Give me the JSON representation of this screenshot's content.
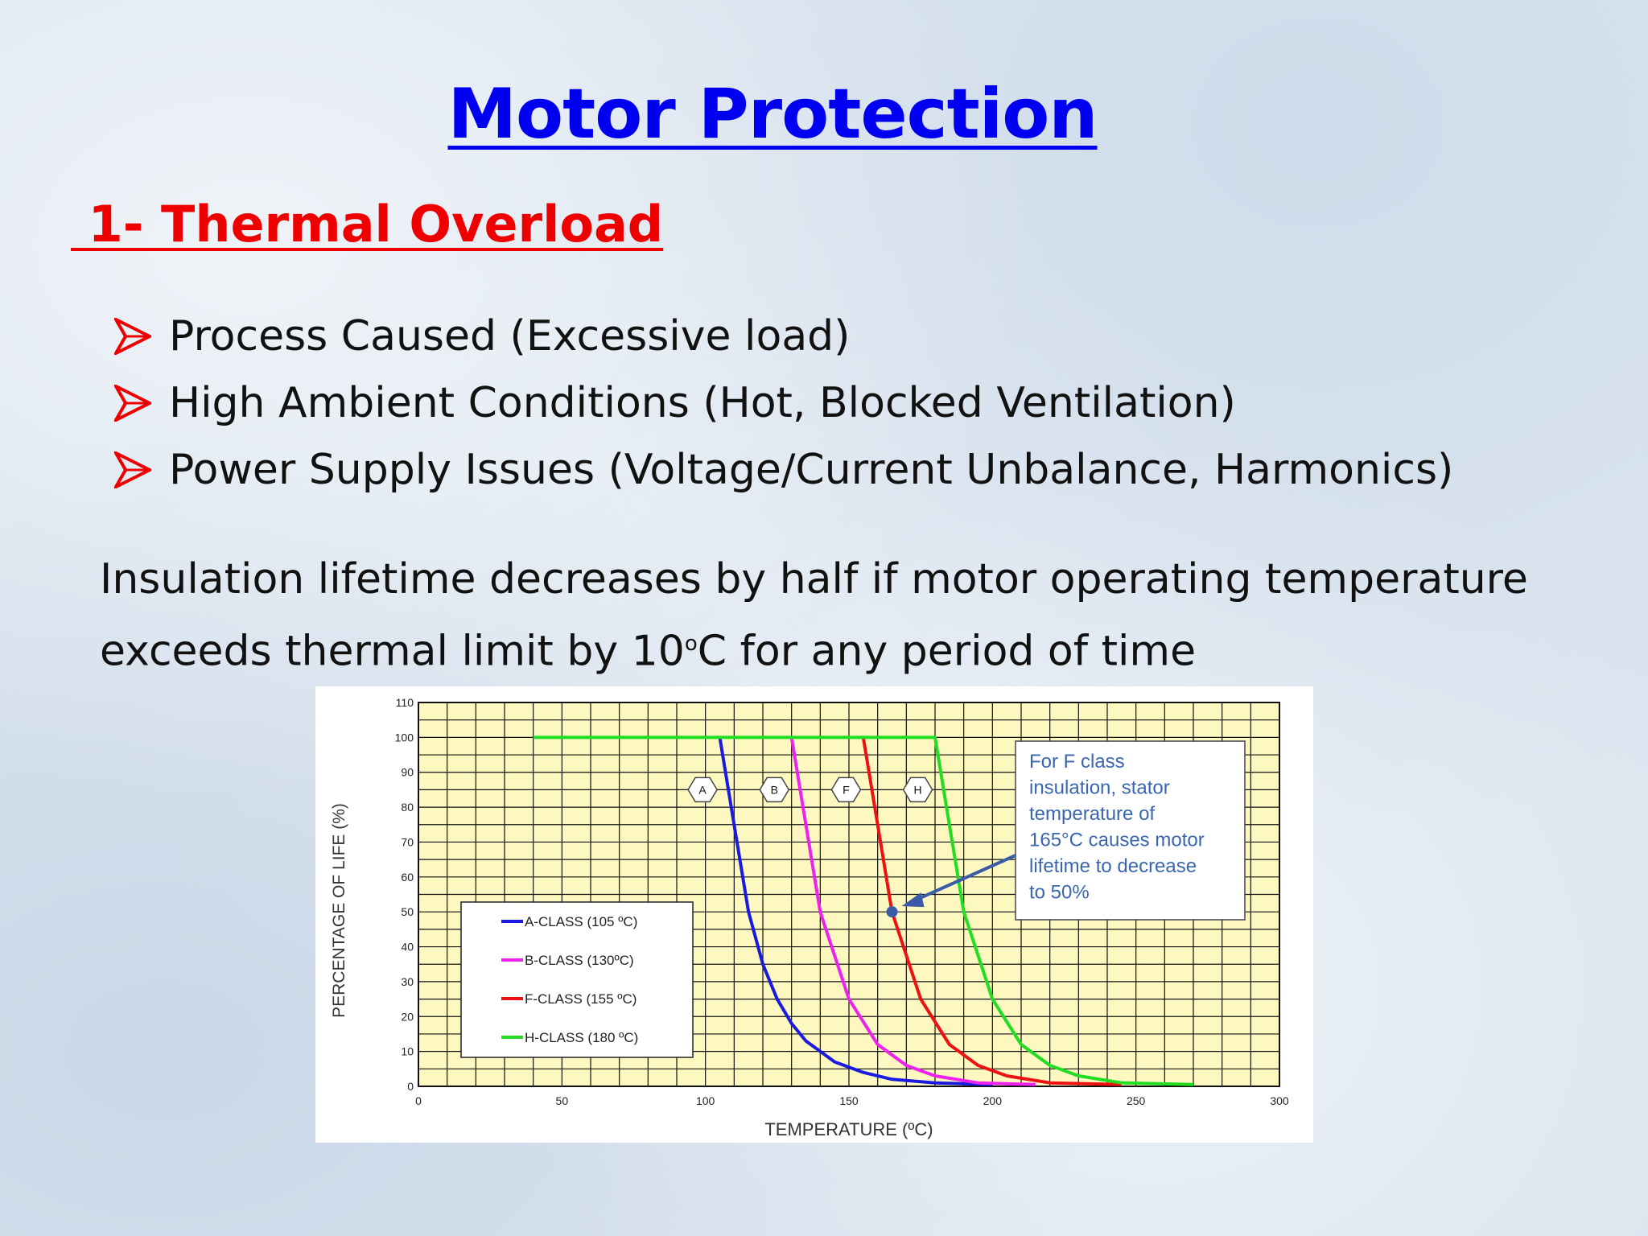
{
  "slide": {
    "title": "Motor Protection",
    "subtitle": " 1- Thermal Overload",
    "bullets": [
      "Process Caused (Excessive load)",
      "High Ambient Conditions (Hot, Blocked Ventilation)",
      "Power Supply Issues (Voltage/Current Unbalance, Harmonics)"
    ],
    "paragraph": {
      "line1": "Insulation lifetime decreases by half if motor operating temperature",
      "line2_pre": "exceeds thermal limit by 10",
      "line2_sup": "o",
      "line2_post": "C for any period of time"
    },
    "colors": {
      "title": "#0000f0",
      "subtitle": "#ee0000",
      "bullet_arrow": "#ee0000"
    }
  },
  "chart_data": {
    "type": "line",
    "xlabel": "TEMPERATURE (ºC)",
    "ylabel": "PERCENTAGE OF LIFE (%)",
    "xlim": [
      0,
      300
    ],
    "ylim": [
      0,
      110
    ],
    "x_ticks": [
      0,
      50,
      100,
      150,
      200,
      250,
      300
    ],
    "y_ticks": [
      0,
      10,
      20,
      30,
      40,
      50,
      60,
      70,
      80,
      90,
      100,
      110
    ],
    "grid": true,
    "background": "#fdf8c0",
    "legend_position": "lower-left",
    "series": [
      {
        "name": "A-CLASS (105 ºC)",
        "tag": "A",
        "color": "#1a1ae0",
        "points": [
          [
            105,
            100
          ],
          [
            110,
            75
          ],
          [
            115,
            50
          ],
          [
            120,
            35
          ],
          [
            125,
            25
          ],
          [
            130,
            18
          ],
          [
            135,
            13
          ],
          [
            145,
            7
          ],
          [
            155,
            4
          ],
          [
            165,
            2
          ],
          [
            180,
            1
          ],
          [
            200,
            0.5
          ]
        ]
      },
      {
        "name": "B-CLASS (130ºC)",
        "tag": "B",
        "color": "#ee22ee",
        "points": [
          [
            130,
            100
          ],
          [
            135,
            75
          ],
          [
            140,
            50
          ],
          [
            150,
            25
          ],
          [
            160,
            12
          ],
          [
            170,
            6
          ],
          [
            180,
            3
          ],
          [
            195,
            1
          ],
          [
            215,
            0.5
          ]
        ]
      },
      {
        "name": "F-CLASS (155 ºC)",
        "tag": "F",
        "color": "#ee1111",
        "points": [
          [
            155,
            100
          ],
          [
            160,
            75
          ],
          [
            165,
            50
          ],
          [
            175,
            25
          ],
          [
            185,
            12
          ],
          [
            195,
            6
          ],
          [
            205,
            3
          ],
          [
            220,
            1
          ],
          [
            245,
            0.5
          ]
        ]
      },
      {
        "name": "H-CLASS (180 ºC)",
        "tag": "H",
        "color": "#22dd22",
        "points": [
          [
            40,
            100
          ],
          [
            180,
            100
          ],
          [
            185,
            75
          ],
          [
            190,
            50
          ],
          [
            200,
            25
          ],
          [
            210,
            12
          ],
          [
            220,
            6
          ],
          [
            230,
            3
          ],
          [
            245,
            1
          ],
          [
            270,
            0.5
          ]
        ]
      }
    ],
    "highlight_point": {
      "x": 165,
      "y": 50,
      "color": "#3a5ca8"
    },
    "annotation": {
      "lines": [
        "For F class",
        "insulation, stator",
        "temperature of",
        "165°C causes motor",
        "lifetime to decrease",
        "to 50%"
      ],
      "color": "#3a66b0"
    }
  }
}
